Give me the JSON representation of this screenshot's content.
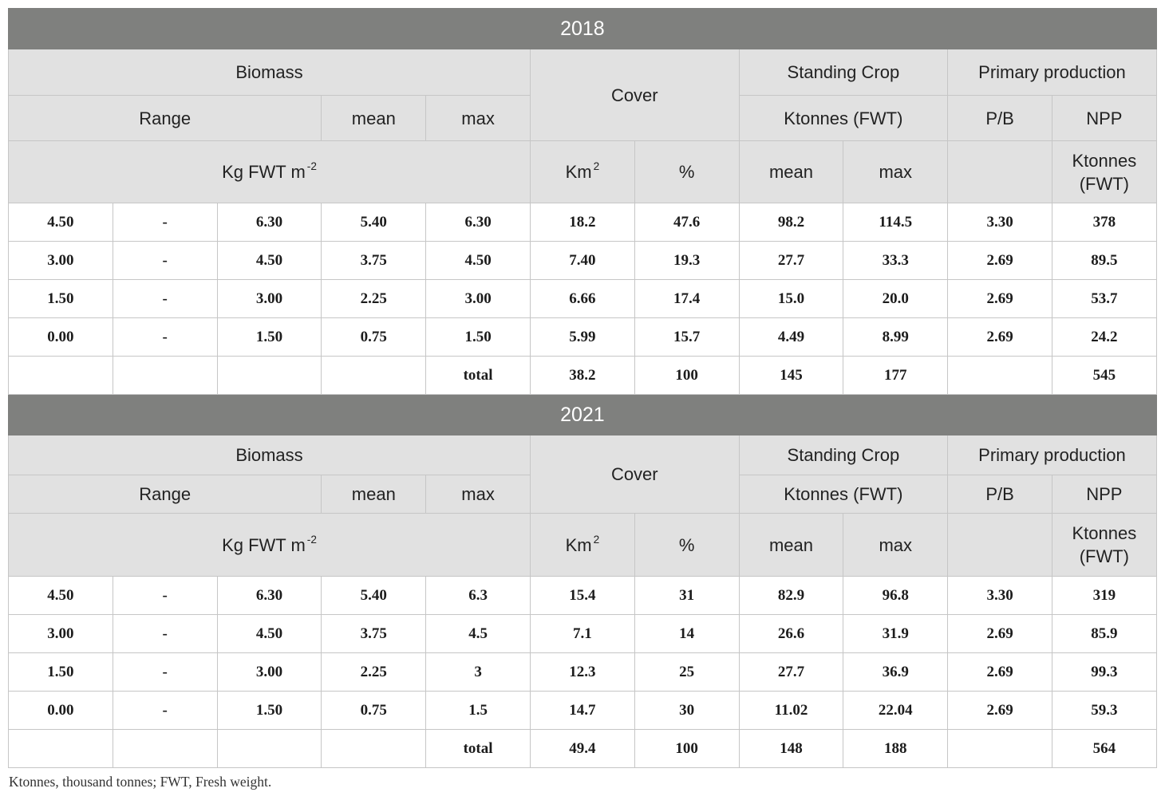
{
  "colors": {
    "year_band": "#7f807e",
    "header_bg": "#e1e1e1"
  },
  "sections": [
    {
      "year": "2018",
      "headers": {
        "biomass": "Biomass",
        "cover": "Cover",
        "standing_crop": "Standing Crop",
        "primary_production": "Primary production",
        "range": "Range",
        "mean": "mean",
        "max": "max",
        "standing_crop_unit": "Ktonnes (FWT)",
        "pb": "P/B",
        "npp": "NPP",
        "biomass_unit": {
          "text": "Kg FWT m",
          "sup": "-2"
        },
        "cover_area_unit": {
          "text": "Km",
          "sup": "2"
        },
        "cover_percent_unit": "%",
        "standing_crop_mean": "mean",
        "standing_crop_max": "max",
        "npp_unit": "Ktonnes (FWT)"
      },
      "rows": [
        [
          "4.50",
          "-",
          "6.30",
          "5.40",
          "6.30",
          "18.2",
          "47.6",
          "98.2",
          "114.5",
          "3.30",
          "378"
        ],
        [
          "3.00",
          "-",
          "4.50",
          "3.75",
          "4.50",
          "7.40",
          "19.3",
          "27.7",
          "33.3",
          "2.69",
          "89.5"
        ],
        [
          "1.50",
          "-",
          "3.00",
          "2.25",
          "3.00",
          "6.66",
          "17.4",
          "15.0",
          "20.0",
          "2.69",
          "53.7"
        ],
        [
          "0.00",
          "-",
          "1.50",
          "0.75",
          "1.50",
          "5.99",
          "15.7",
          "4.49",
          "8.99",
          "2.69",
          "24.2"
        ]
      ],
      "total": [
        "",
        "",
        "",
        "",
        "total",
        "38.2",
        "100",
        "145",
        "177",
        "",
        "545"
      ]
    },
    {
      "year": "2021",
      "headers": {
        "biomass": "Biomass",
        "cover": "Cover",
        "standing_crop": "Standing Crop",
        "primary_production": "Primary production",
        "range": "Range",
        "mean": "mean",
        "max": "max",
        "standing_crop_unit": "Ktonnes (FWT)",
        "pb": "P/B",
        "npp": "NPP",
        "biomass_unit": {
          "text": "Kg FWT m",
          "sup": "-2"
        },
        "cover_area_unit": {
          "text": "Km",
          "sup": "2"
        },
        "cover_percent_unit": "%",
        "standing_crop_mean": "mean",
        "standing_crop_max": "max",
        "npp_unit": "Ktonnes (FWT)"
      },
      "rows": [
        [
          "4.50",
          "-",
          "6.30",
          "5.40",
          "6.3",
          "15.4",
          "31",
          "82.9",
          "96.8",
          "3.30",
          "319"
        ],
        [
          "3.00",
          "-",
          "4.50",
          "3.75",
          "4.5",
          "7.1",
          "14",
          "26.6",
          "31.9",
          "2.69",
          "85.9"
        ],
        [
          "1.50",
          "-",
          "3.00",
          "2.25",
          "3",
          "12.3",
          "25",
          "27.7",
          "36.9",
          "2.69",
          "99.3"
        ],
        [
          "0.00",
          "-",
          "1.50",
          "0.75",
          "1.5",
          "14.7",
          "30",
          "11.02",
          "22.04",
          "2.69",
          "59.3"
        ]
      ],
      "total": [
        "",
        "",
        "",
        "",
        "total",
        "49.4",
        "100",
        "148",
        "188",
        "",
        "564"
      ]
    }
  ],
  "footnote": "Ktonnes, thousand tonnes; FWT, Fresh weight."
}
